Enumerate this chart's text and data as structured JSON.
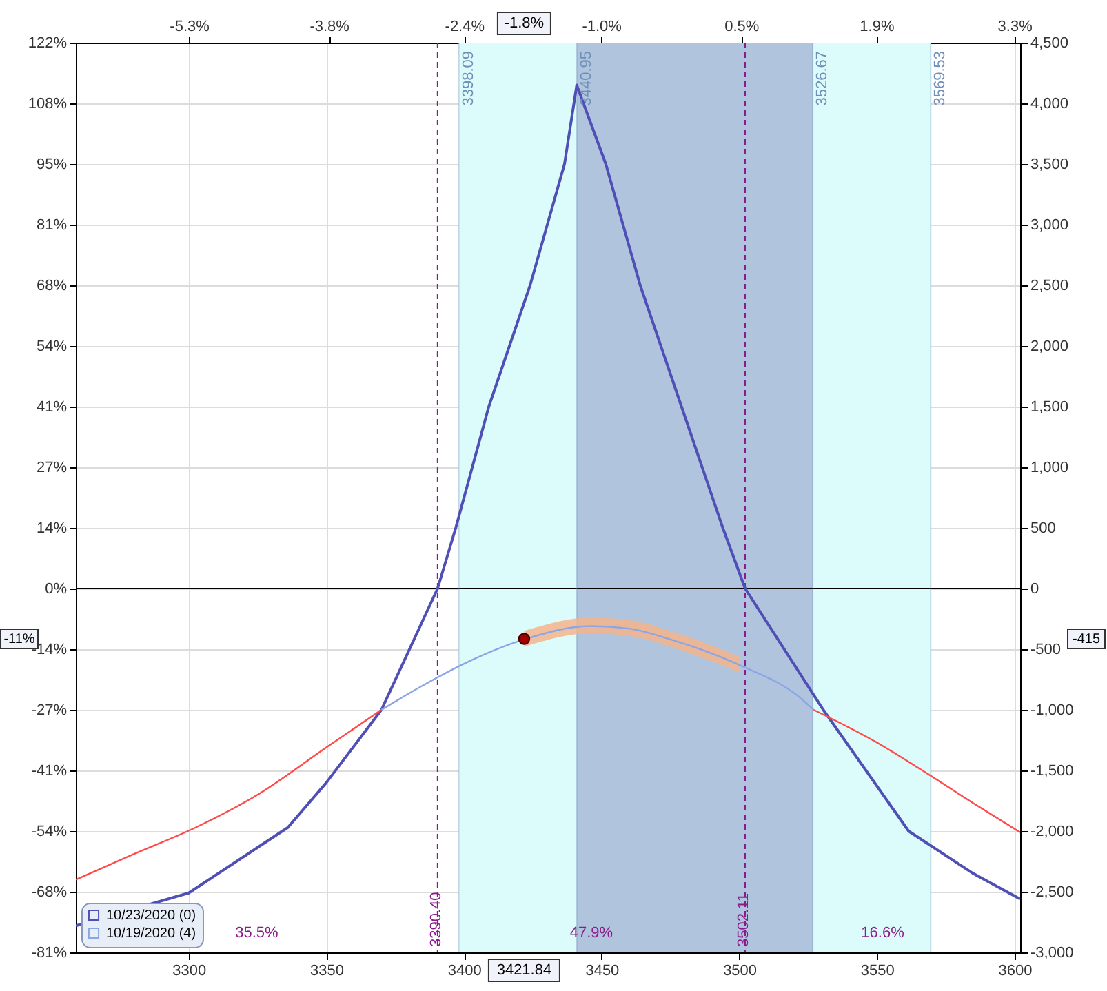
{
  "chart_data": {
    "type": "line",
    "xlim": [
      3259,
      3602
    ],
    "ylim": [
      -81.3,
      122.0
    ],
    "y2lim": [
      -3000,
      4500
    ],
    "x2lim": [
      -6.48,
      3.37
    ],
    "xticks": [
      3300,
      3350,
      3400,
      3450,
      3500,
      3550,
      3600
    ],
    "x2ticks": [
      {
        "value": -5.3,
        "label": "-5.3%"
      },
      {
        "value": -3.84,
        "label": "-3.8%"
      },
      {
        "value": -2.43,
        "label": "-2.4%"
      },
      {
        "value": -1.0,
        "label": "-1.0%"
      },
      {
        "value": 0.46,
        "label": "0.5%"
      },
      {
        "value": 1.87,
        "label": "1.9%"
      },
      {
        "value": 3.31,
        "label": "3.3%"
      }
    ],
    "yticks": [
      {
        "value": 122.0,
        "label": "122%"
      },
      {
        "value": 108.4,
        "label": "108%"
      },
      {
        "value": 94.9,
        "label": "95%"
      },
      {
        "value": 81.3,
        "label": "81%"
      },
      {
        "value": 67.8,
        "label": "68%"
      },
      {
        "value": 54.2,
        "label": "54%"
      },
      {
        "value": 40.7,
        "label": "41%"
      },
      {
        "value": 27.1,
        "label": "27%"
      },
      {
        "value": 13.6,
        "label": "14%"
      },
      {
        "value": 0,
        "label": "0%"
      },
      {
        "value": -13.6,
        "label": "-14%"
      },
      {
        "value": -27.1,
        "label": "-27%"
      },
      {
        "value": -40.7,
        "label": "-41%"
      },
      {
        "value": -54.2,
        "label": "-54%"
      },
      {
        "value": -67.8,
        "label": "-68%"
      },
      {
        "value": -81.3,
        "label": "-81%"
      }
    ],
    "y2ticks": [
      {
        "value": 4500,
        "label": "4,500"
      },
      {
        "value": 4000,
        "label": "4,000"
      },
      {
        "value": 3500,
        "label": "3,500"
      },
      {
        "value": 3000,
        "label": "3,000"
      },
      {
        "value": 2500,
        "label": "2,500"
      },
      {
        "value": 2000,
        "label": "2,000"
      },
      {
        "value": 1500,
        "label": "1,500"
      },
      {
        "value": 1000,
        "label": "1,000"
      },
      {
        "value": 500,
        "label": "500"
      },
      {
        "value": 0,
        "label": "0"
      },
      {
        "value": -500,
        "label": "-500"
      },
      {
        "value": -1000,
        "label": "-1,000"
      },
      {
        "value": -1500,
        "label": "-1,500"
      },
      {
        "value": -2000,
        "label": "-2,000"
      },
      {
        "value": -2500,
        "label": "-2,500"
      },
      {
        "value": -3000,
        "label": "-3,000"
      }
    ],
    "grid": true,
    "legend": "bottom left",
    "marker": "none",
    "line_style": "solid",
    "series": [
      {
        "name": "10/23/2020 (0)",
        "axis": "y2",
        "color": "#4f4fb5",
        "x": [
          3259,
          3300,
          3336,
          3350,
          3370,
          3390.4,
          3397,
          3409,
          3424,
          3436.5,
          3440.95,
          3451.5,
          3464,
          3479,
          3494,
          3502.11,
          3530.5,
          3561.5,
          3585,
          3602
        ],
        "values": [
          -2780,
          -2510,
          -1970,
          -1600,
          -1000,
          0,
          500,
          1500,
          2500,
          3500,
          4150,
          3500,
          2500,
          1500,
          500,
          0,
          -1000,
          -2000,
          -2350,
          -2560
        ]
      },
      {
        "name": "10/19/2020 (4)",
        "axis": "y2",
        "color": "#8aa6e6",
        "x": [
          3370,
          3385,
          3400,
          3421.84,
          3446,
          3460,
          3475,
          3500,
          3521.5,
          3527
        ],
        "values": [
          -1000,
          -800,
          -620,
          -420,
          -310,
          -330,
          -420,
          -630,
          -890,
          -1000
        ],
        "lower": [
          null,
          null,
          null,
          -480,
          -370,
          -390,
          -480,
          -690,
          null,
          null
        ],
        "upper": [
          null,
          null,
          null,
          -350,
          -240,
          -260,
          -350,
          -560,
          null,
          null
        ]
      },
      {
        "axis": "y2",
        "color": "#ff4a4a",
        "x": [
          3259,
          3280,
          3302.5,
          3325,
          3350,
          3370,
          3450,
          3527,
          3550,
          3566.5,
          3585,
          3602
        ],
        "values": [
          -2400,
          -2190,
          -1970,
          -1700,
          -1310,
          -1000,
          null,
          -1000,
          -1270,
          -1500,
          -1770,
          -2010
        ]
      },
      {
        "type": "scatter",
        "axis": "y2",
        "marker": "circle",
        "color": "#a00000",
        "x": [
          3421.84
        ],
        "values": [
          -415
        ]
      }
    ],
    "bands": [
      {
        "axis": "x",
        "from": 3398.09,
        "to": 3569.53,
        "color": "#dcfbfb"
      },
      {
        "axis": "x",
        "from": 3440.95,
        "to": 3526.67,
        "color": "#b0c4de"
      }
    ],
    "ref_lines": [
      {
        "axis": "y2",
        "value": 0,
        "color": "#000000",
        "line_style": "solid"
      },
      {
        "axis": "x",
        "value": 3390.4,
        "label": "3390.40",
        "color": "#8b1a8b",
        "line_style": "dashed"
      },
      {
        "axis": "x",
        "value": 3502.11,
        "label": "3502.11",
        "color": "#8b1a8b",
        "line_style": "dashed"
      },
      {
        "axis": "x",
        "value": 3398.09,
        "label": "3398.09",
        "color": "#6f8fb8",
        "line_style": "solid"
      },
      {
        "axis": "x",
        "value": 3440.95,
        "label": "3440.95",
        "color": "#6f8fb8",
        "line_style": "solid"
      },
      {
        "axis": "x",
        "value": 3526.67,
        "label": "3526.67",
        "color": "#6f8fb8",
        "line_style": "solid"
      },
      {
        "axis": "x",
        "value": 3569.53,
        "label": "3569.53",
        "color": "#6f8fb8",
        "line_style": "solid"
      }
    ],
    "annotations": [
      "35.5%",
      "47.9%",
      "16.6%",
      "-1.8%",
      "3421.84",
      "-11%",
      "-415"
    ]
  }
}
